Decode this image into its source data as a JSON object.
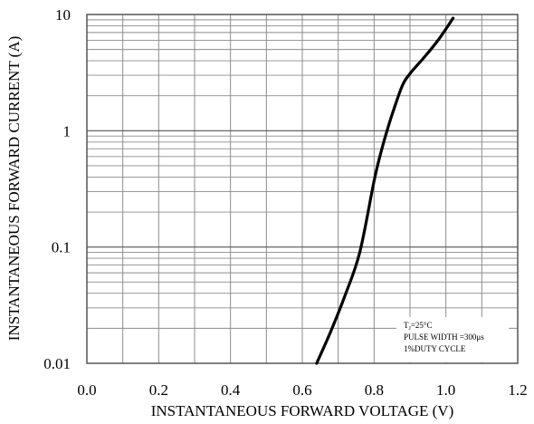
{
  "chart_data": {
    "type": "line",
    "title": "",
    "xlabel": "INSTANTANEOUS FORWARD VOLTAGE (V)",
    "ylabel": "INSTANTANEOUS FORWARD CURRENT (A)",
    "xlim": [
      0.0,
      1.2
    ],
    "ylim": [
      0.01,
      10
    ],
    "yscale": "log",
    "grid": true,
    "x_ticks": [
      "0.0",
      "0.2",
      "0.4",
      "0.6",
      "0.8",
      "1.0",
      "1.2"
    ],
    "y_ticks": [
      "0.01",
      "0.1",
      "1",
      "10"
    ],
    "series": [
      {
        "x": [
          0.64,
          0.68,
          0.72,
          0.76,
          0.8,
          0.82,
          0.84,
          0.86,
          0.88,
          0.9,
          0.94,
          0.98,
          1.02
        ],
        "y": [
          0.01,
          0.019,
          0.039,
          0.09,
          0.37,
          0.67,
          1.1,
          1.7,
          2.5,
          3.1,
          4.3,
          6.1,
          9.3
        ]
      }
    ],
    "annotation": {
      "line1_main": "T",
      "line1_sub": "J",
      "line1_rest": "=25°C",
      "line2": "PULSE WIDTH =300μs",
      "line3": "1%DUTY CYCLE"
    }
  }
}
